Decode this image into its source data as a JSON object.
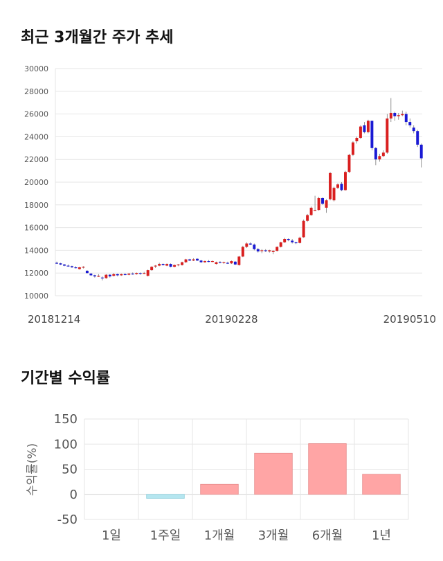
{
  "page": {
    "title1": "최근 3개월간 주가 추세",
    "title2": "기간별 수익률"
  },
  "colors": {
    "up": "#d91f1f",
    "down": "#1a1ad4",
    "bar_positive": "#ffa5a5",
    "bar_negative": "#b5e6f0",
    "grid": "#e6e6e6"
  },
  "chart_data": [
    {
      "type": "candlestick",
      "title": "최근 3개월간 주가 추세",
      "ylim": [
        10000,
        30000
      ],
      "y_ticks": [
        10000,
        12000,
        14000,
        16000,
        18000,
        20000,
        22000,
        24000,
        26000,
        28000,
        30000
      ],
      "x_labels": [
        {
          "label": "20181214",
          "index": 0
        },
        {
          "label": "20190228",
          "index": 46
        },
        {
          "label": "20190510",
          "index": 94
        }
      ],
      "grid": true,
      "candles": [
        [
          12900,
          13000,
          12800,
          12850
        ],
        [
          12850,
          12900,
          12700,
          12750
        ],
        [
          12750,
          12800,
          12600,
          12650
        ],
        [
          12650,
          12750,
          12550,
          12600
        ],
        [
          12600,
          12650,
          12450,
          12500
        ],
        [
          12500,
          12600,
          12400,
          12450
        ],
        [
          12350,
          12550,
          12300,
          12500
        ],
        [
          12500,
          12600,
          12400,
          12550
        ],
        [
          12200,
          12250,
          11950,
          12000
        ],
        [
          11950,
          12000,
          11750,
          11800
        ],
        [
          11800,
          11850,
          11600,
          11700
        ],
        [
          11700,
          11900,
          11650,
          11750
        ],
        [
          11600,
          11700,
          11350,
          11550
        ],
        [
          11550,
          11900,
          11500,
          11850
        ],
        [
          11850,
          11900,
          11600,
          11700
        ],
        [
          11750,
          12000,
          11700,
          11900
        ],
        [
          11900,
          11950,
          11700,
          11800
        ],
        [
          11800,
          11950,
          11750,
          11900
        ],
        [
          11900,
          12000,
          11800,
          11850
        ],
        [
          11850,
          12000,
          11800,
          11950
        ],
        [
          11950,
          12050,
          11850,
          11900
        ],
        [
          11900,
          12050,
          11850,
          12000
        ],
        [
          12000,
          12050,
          11850,
          11950
        ],
        [
          11950,
          12100,
          11900,
          12000
        ],
        [
          11750,
          12300,
          11700,
          12250
        ],
        [
          12250,
          12600,
          12200,
          12550
        ],
        [
          12600,
          12700,
          12450,
          12650
        ],
        [
          12650,
          12900,
          12600,
          12800
        ],
        [
          12800,
          12850,
          12650,
          12700
        ],
        [
          12650,
          12850,
          12600,
          12800
        ],
        [
          12800,
          12850,
          12500,
          12550
        ],
        [
          12550,
          12750,
          12500,
          12700
        ],
        [
          12700,
          12800,
          12600,
          12750
        ],
        [
          12700,
          13000,
          12650,
          12950
        ],
        [
          12950,
          13250,
          12900,
          13200
        ],
        [
          13200,
          13250,
          13050,
          13100
        ],
        [
          13100,
          13300,
          13050,
          13200
        ],
        [
          13250,
          13300,
          13050,
          13100
        ],
        [
          13100,
          13150,
          12900,
          12950
        ],
        [
          12950,
          13100,
          12900,
          13050
        ],
        [
          13050,
          13150,
          12950,
          13000
        ],
        [
          13000,
          13100,
          12950,
          13050
        ],
        [
          12800,
          13000,
          12750,
          12950
        ],
        [
          12950,
          13050,
          12850,
          12900
        ],
        [
          12900,
          13000,
          12800,
          12950
        ],
        [
          12900,
          13000,
          12800,
          12850
        ],
        [
          12850,
          13100,
          12800,
          13050
        ],
        [
          13000,
          13050,
          12700,
          12750
        ],
        [
          12700,
          13500,
          12650,
          13450
        ],
        [
          13450,
          14400,
          13400,
          14300
        ],
        [
          14300,
          14700,
          14200,
          14600
        ],
        [
          14600,
          14700,
          14450,
          14500
        ],
        [
          14500,
          14600,
          14000,
          14100
        ],
        [
          14100,
          14200,
          13800,
          13900
        ],
        [
          13950,
          14100,
          13750,
          14000
        ],
        [
          14000,
          14100,
          13850,
          13950
        ],
        [
          13900,
          14050,
          13800,
          14000
        ],
        [
          13850,
          14000,
          13650,
          13950
        ],
        [
          13950,
          14350,
          13900,
          14300
        ],
        [
          14300,
          14750,
          14250,
          14700
        ],
        [
          14700,
          15100,
          14650,
          15000
        ],
        [
          15000,
          15050,
          14800,
          14900
        ],
        [
          14850,
          15000,
          14600,
          14700
        ],
        [
          14700,
          14750,
          14550,
          14650
        ],
        [
          14650,
          15200,
          14600,
          15100
        ],
        [
          15150,
          16700,
          15100,
          16600
        ],
        [
          16600,
          17200,
          16500,
          17100
        ],
        [
          17100,
          17850,
          17050,
          17750
        ],
        [
          17500,
          18800,
          17450,
          17550
        ],
        [
          17550,
          18700,
          17500,
          18600
        ],
        [
          18600,
          18650,
          18000,
          18100
        ],
        [
          17750,
          18500,
          17300,
          18400
        ],
        [
          18500,
          20900,
          18400,
          20800
        ],
        [
          18400,
          19600,
          18300,
          19500
        ],
        [
          19500,
          19900,
          19400,
          19800
        ],
        [
          19850,
          20000,
          19200,
          19300
        ],
        [
          19300,
          21000,
          19250,
          20900
        ],
        [
          20900,
          22500,
          20800,
          22400
        ],
        [
          22400,
          23600,
          22300,
          23500
        ],
        [
          23600,
          24000,
          23400,
          23900
        ],
        [
          23900,
          25000,
          23800,
          24900
        ],
        [
          25000,
          25300,
          24300,
          24400
        ],
        [
          24400,
          25500,
          24300,
          25400
        ],
        [
          25400,
          25400,
          22800,
          23000
        ],
        [
          23000,
          23100,
          21500,
          22000
        ],
        [
          22000,
          22500,
          21800,
          22300
        ],
        [
          22300,
          22800,
          22200,
          22600
        ],
        [
          22600,
          26000,
          22500,
          25600
        ],
        [
          25600,
          27400,
          25300,
          26100
        ],
        [
          26100,
          26200,
          25400,
          25800
        ],
        [
          25800,
          26100,
          25500,
          25900
        ],
        [
          25900,
          26300,
          25800,
          26000
        ],
        [
          26000,
          26200,
          25000,
          25300
        ],
        [
          25300,
          25600,
          24800,
          25000
        ],
        [
          24800,
          25000,
          24300,
          24500
        ],
        [
          24500,
          24600,
          23100,
          23300
        ],
        [
          23300,
          23400,
          21300,
          22100
        ]
      ]
    },
    {
      "type": "bar",
      "title": "기간별 수익률",
      "categories": [
        "1일",
        "1주일",
        "1개월",
        "3개월",
        "6개월",
        "1년"
      ],
      "values": [
        0,
        -8,
        20,
        82,
        101,
        40
      ],
      "ylabel": "수익률(%)",
      "ylim": [
        -50,
        150
      ],
      "y_ticks": [
        -50,
        0,
        50,
        100,
        150
      ],
      "grid": true
    }
  ]
}
